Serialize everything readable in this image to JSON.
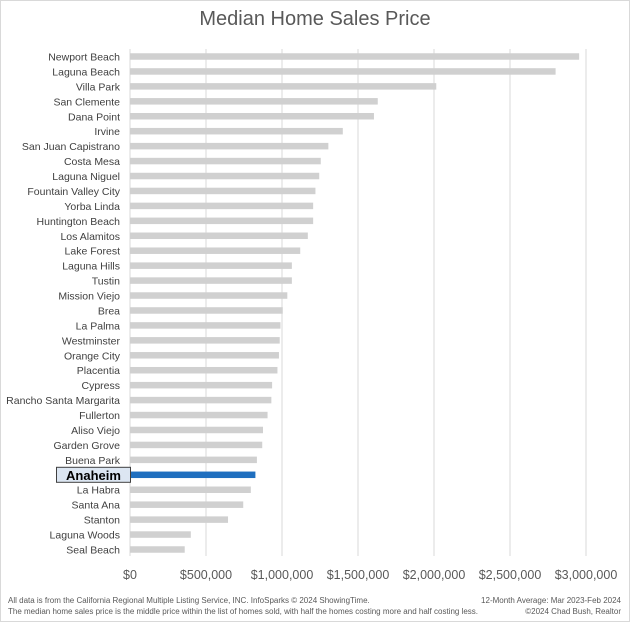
{
  "chart_data": {
    "type": "bar",
    "orientation": "horizontal",
    "title": "Median Home Sales Price",
    "xlabel": "",
    "ylabel": "",
    "xlim": [
      0,
      3000000
    ],
    "xticks": [
      0,
      500000,
      1000000,
      1500000,
      2000000,
      2500000,
      3000000
    ],
    "xtick_labels": [
      "$0",
      "$500,000",
      "$1,000,000",
      "$1,500,000",
      "$2,000,000",
      "$2,500,000",
      "$3,000,000"
    ],
    "grid": "vertical",
    "legend": "none",
    "bar_color": "#d0d0d0",
    "highlight_color": "#1f6fbf",
    "highlight_category": "Anaheim",
    "categories": [
      "Newport Beach",
      "Laguna Beach",
      "Villa Park",
      "San Clemente",
      "Dana Point",
      "Irvine",
      "San Juan Capistrano",
      "Costa Mesa",
      "Laguna Niguel",
      "Fountain Valley City",
      "Yorba Linda",
      "Huntington Beach",
      "Los Alamitos",
      "Lake Forest",
      "Laguna Hills",
      "Tustin",
      "Mission Viejo",
      "Brea",
      "La Palma",
      "Westminster",
      "Orange City",
      "Placentia",
      "Cypress",
      "Rancho Santa Margarita",
      "Fullerton",
      "Aliso Viejo",
      "Garden Grove",
      "Buena Park",
      "Anaheim",
      "La Habra",
      "Santa Ana",
      "Stanton",
      "Laguna Woods",
      "Seal Beach"
    ],
    "values": [
      2955000,
      2800000,
      2015000,
      1630000,
      1605000,
      1400000,
      1305000,
      1255000,
      1245000,
      1220000,
      1205000,
      1205000,
      1170000,
      1120000,
      1065000,
      1065000,
      1035000,
      1005000,
      990000,
      985000,
      980000,
      970000,
      935000,
      930000,
      905000,
      875000,
      870000,
      835000,
      825000,
      795000,
      745000,
      645000,
      400000,
      360000
    ]
  },
  "footer": {
    "source": "All data is from the California Regional Multiple Listing Service, INC. InfoSparks © 2024 ShowingTime.",
    "note": "The median home sales price is the middle price within the list of homes sold, with half the homes costing more and half costing less.",
    "period": "12-Month Average: Mar 2023-Feb 2024",
    "credit": "©2024 Chad Bush, Realtor"
  }
}
